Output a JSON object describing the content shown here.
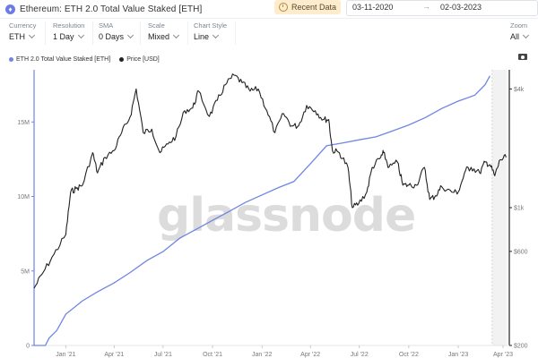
{
  "header": {
    "title": "Ethereum: ETH 2.0 Total Value Staked [ETH]",
    "recent_label": "Recent Data",
    "date_from": "03-11-2020",
    "date_arrow": "→",
    "date_to": "02-03-2023"
  },
  "controls": {
    "currency": {
      "label": "Currency",
      "value": "ETH"
    },
    "resolution": {
      "label": "Resolution",
      "value": "1 Day"
    },
    "sma": {
      "label": "SMA",
      "value": "0 Days"
    },
    "scale": {
      "label": "Scale",
      "value": "Mixed"
    },
    "chart_style": {
      "label": "Chart Style",
      "value": "Line"
    },
    "zoom": {
      "label": "Zoom",
      "value": "All"
    }
  },
  "icons": {
    "camera": "camera-icon",
    "clock": "clock-icon",
    "eth": "eth-icon"
  },
  "colors": {
    "staked": "#6f86e3",
    "price": "#222222",
    "recent_bg": "#fdeccd"
  },
  "chart_data": {
    "type": "line",
    "watermark": "glassnode",
    "x_tick_labels": [
      "Jan '21",
      "Apr '21",
      "Jul '21",
      "Oct '21",
      "Jan '22",
      "Apr '22",
      "Jul '22",
      "Oct '22",
      "Jan '23",
      "Apr '23"
    ],
    "left_axis": {
      "ticks": [
        0,
        5,
        10,
        15
      ],
      "tick_labels": [
        "0",
        "5M",
        "10M",
        "15M"
      ],
      "ylim": [
        0,
        18.5
      ],
      "unit": "M ETH"
    },
    "right_axis": {
      "scale": "log",
      "ticks": [
        200,
        600,
        1000,
        4000
      ],
      "tick_labels": [
        "$200",
        "$600",
        "$1k",
        "$4k"
      ],
      "ylim": [
        200,
        5000
      ]
    },
    "series": [
      {
        "name": "ETH 2.0 Total Value Staked [ETH]",
        "axis": "left",
        "points": [
          [
            "2020-11-03",
            0.0
          ],
          [
            "2020-11-24",
            0.0
          ],
          [
            "2020-12-01",
            0.5
          ],
          [
            "2020-12-15",
            1.0
          ],
          [
            "2021-01-01",
            2.1
          ],
          [
            "2021-02-01",
            3.0
          ],
          [
            "2021-03-01",
            3.6
          ],
          [
            "2021-04-01",
            4.2
          ],
          [
            "2021-05-01",
            4.9
          ],
          [
            "2021-06-01",
            5.7
          ],
          [
            "2021-07-01",
            6.3
          ],
          [
            "2021-08-01",
            7.2
          ],
          [
            "2021-09-01",
            7.8
          ],
          [
            "2021-10-01",
            8.4
          ],
          [
            "2021-11-01",
            9.0
          ],
          [
            "2021-12-01",
            9.6
          ],
          [
            "2022-01-01",
            10.1
          ],
          [
            "2022-02-01",
            10.6
          ],
          [
            "2022-03-01",
            11.0
          ],
          [
            "2022-04-01",
            12.2
          ],
          [
            "2022-05-01",
            13.4
          ],
          [
            "2022-06-01",
            13.6
          ],
          [
            "2022-07-01",
            13.8
          ],
          [
            "2022-08-01",
            14.0
          ],
          [
            "2022-09-01",
            14.4
          ],
          [
            "2022-10-01",
            14.8
          ],
          [
            "2022-11-01",
            15.3
          ],
          [
            "2022-12-01",
            15.9
          ],
          [
            "2023-01-01",
            16.4
          ],
          [
            "2023-02-01",
            16.8
          ],
          [
            "2023-02-20",
            17.5
          ],
          [
            "2023-03-01",
            18.1
          ]
        ]
      },
      {
        "name": "Price [USD]",
        "axis": "right",
        "points": [
          [
            "2020-11-03",
            390
          ],
          [
            "2020-11-20",
            470
          ],
          [
            "2020-12-10",
            580
          ],
          [
            "2021-01-01",
            730
          ],
          [
            "2021-01-10",
            1200
          ],
          [
            "2021-01-20",
            1250
          ],
          [
            "2021-02-01",
            1300
          ],
          [
            "2021-02-20",
            1900
          ],
          [
            "2021-03-01",
            1500
          ],
          [
            "2021-03-15",
            1800
          ],
          [
            "2021-04-01",
            1950
          ],
          [
            "2021-04-15",
            2400
          ],
          [
            "2021-05-01",
            2900
          ],
          [
            "2021-05-12",
            4000
          ],
          [
            "2021-05-25",
            2400
          ],
          [
            "2021-06-10",
            2500
          ],
          [
            "2021-06-25",
            1900
          ],
          [
            "2021-07-10",
            2100
          ],
          [
            "2021-07-25",
            2300
          ],
          [
            "2021-08-10",
            3100
          ],
          [
            "2021-08-25",
            3200
          ],
          [
            "2021-09-05",
            3900
          ],
          [
            "2021-09-25",
            2900
          ],
          [
            "2021-10-10",
            3500
          ],
          [
            "2021-10-25",
            4200
          ],
          [
            "2021-11-10",
            4700
          ],
          [
            "2021-11-25",
            4300
          ],
          [
            "2021-12-10",
            3900
          ],
          [
            "2021-12-25",
            4000
          ],
          [
            "2022-01-10",
            3100
          ],
          [
            "2022-01-25",
            2400
          ],
          [
            "2022-02-10",
            3000
          ],
          [
            "2022-02-25",
            2600
          ],
          [
            "2022-03-10",
            2600
          ],
          [
            "2022-03-25",
            3300
          ],
          [
            "2022-04-10",
            3100
          ],
          [
            "2022-04-25",
            2800
          ],
          [
            "2022-05-05",
            2800
          ],
          [
            "2022-05-12",
            1950
          ],
          [
            "2022-05-25",
            1900
          ],
          [
            "2022-06-10",
            1600
          ],
          [
            "2022-06-18",
            1000
          ],
          [
            "2022-06-30",
            1050
          ],
          [
            "2022-07-15",
            1200
          ],
          [
            "2022-07-25",
            1600
          ],
          [
            "2022-08-10",
            1800
          ],
          [
            "2022-08-15",
            1900
          ],
          [
            "2022-08-25",
            1600
          ],
          [
            "2022-09-10",
            1700
          ],
          [
            "2022-09-20",
            1300
          ],
          [
            "2022-10-01",
            1300
          ],
          [
            "2022-10-15",
            1300
          ],
          [
            "2022-10-30",
            1600
          ],
          [
            "2022-11-09",
            1100
          ],
          [
            "2022-11-20",
            1150
          ],
          [
            "2022-12-01",
            1280
          ],
          [
            "2022-12-20",
            1200
          ],
          [
            "2023-01-01",
            1200
          ],
          [
            "2023-01-15",
            1550
          ],
          [
            "2023-01-25",
            1600
          ],
          [
            "2023-02-10",
            1500
          ],
          [
            "2023-02-20",
            1700
          ],
          [
            "2023-03-01",
            1650
          ],
          [
            "2023-03-10",
            1450
          ],
          [
            "2023-03-20",
            1750
          ],
          [
            "2023-03-31",
            1800
          ]
        ]
      }
    ],
    "legend_position": "top-left",
    "grid": false
  }
}
